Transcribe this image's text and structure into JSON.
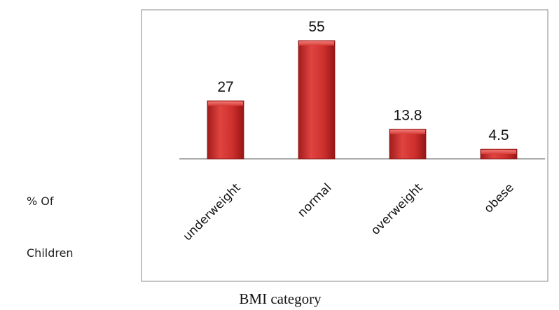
{
  "chart_data": {
    "type": "bar",
    "categories": [
      "underweight",
      "normal",
      "overweight",
      "obese"
    ],
    "values": [
      27,
      55,
      13.8,
      4.5
    ],
    "value_labels": [
      "27",
      "55",
      "13.8",
      "4.5"
    ],
    "title": "",
    "xlabel": "BMI category",
    "ylabel_lines": [
      "% Of",
      "Children"
    ],
    "ylim": [
      0,
      55
    ],
    "grid": false,
    "legend": "none",
    "bar_color": "#c62828",
    "bar_highlight": "#e85a55",
    "bar_shadow": "#8e1414"
  }
}
